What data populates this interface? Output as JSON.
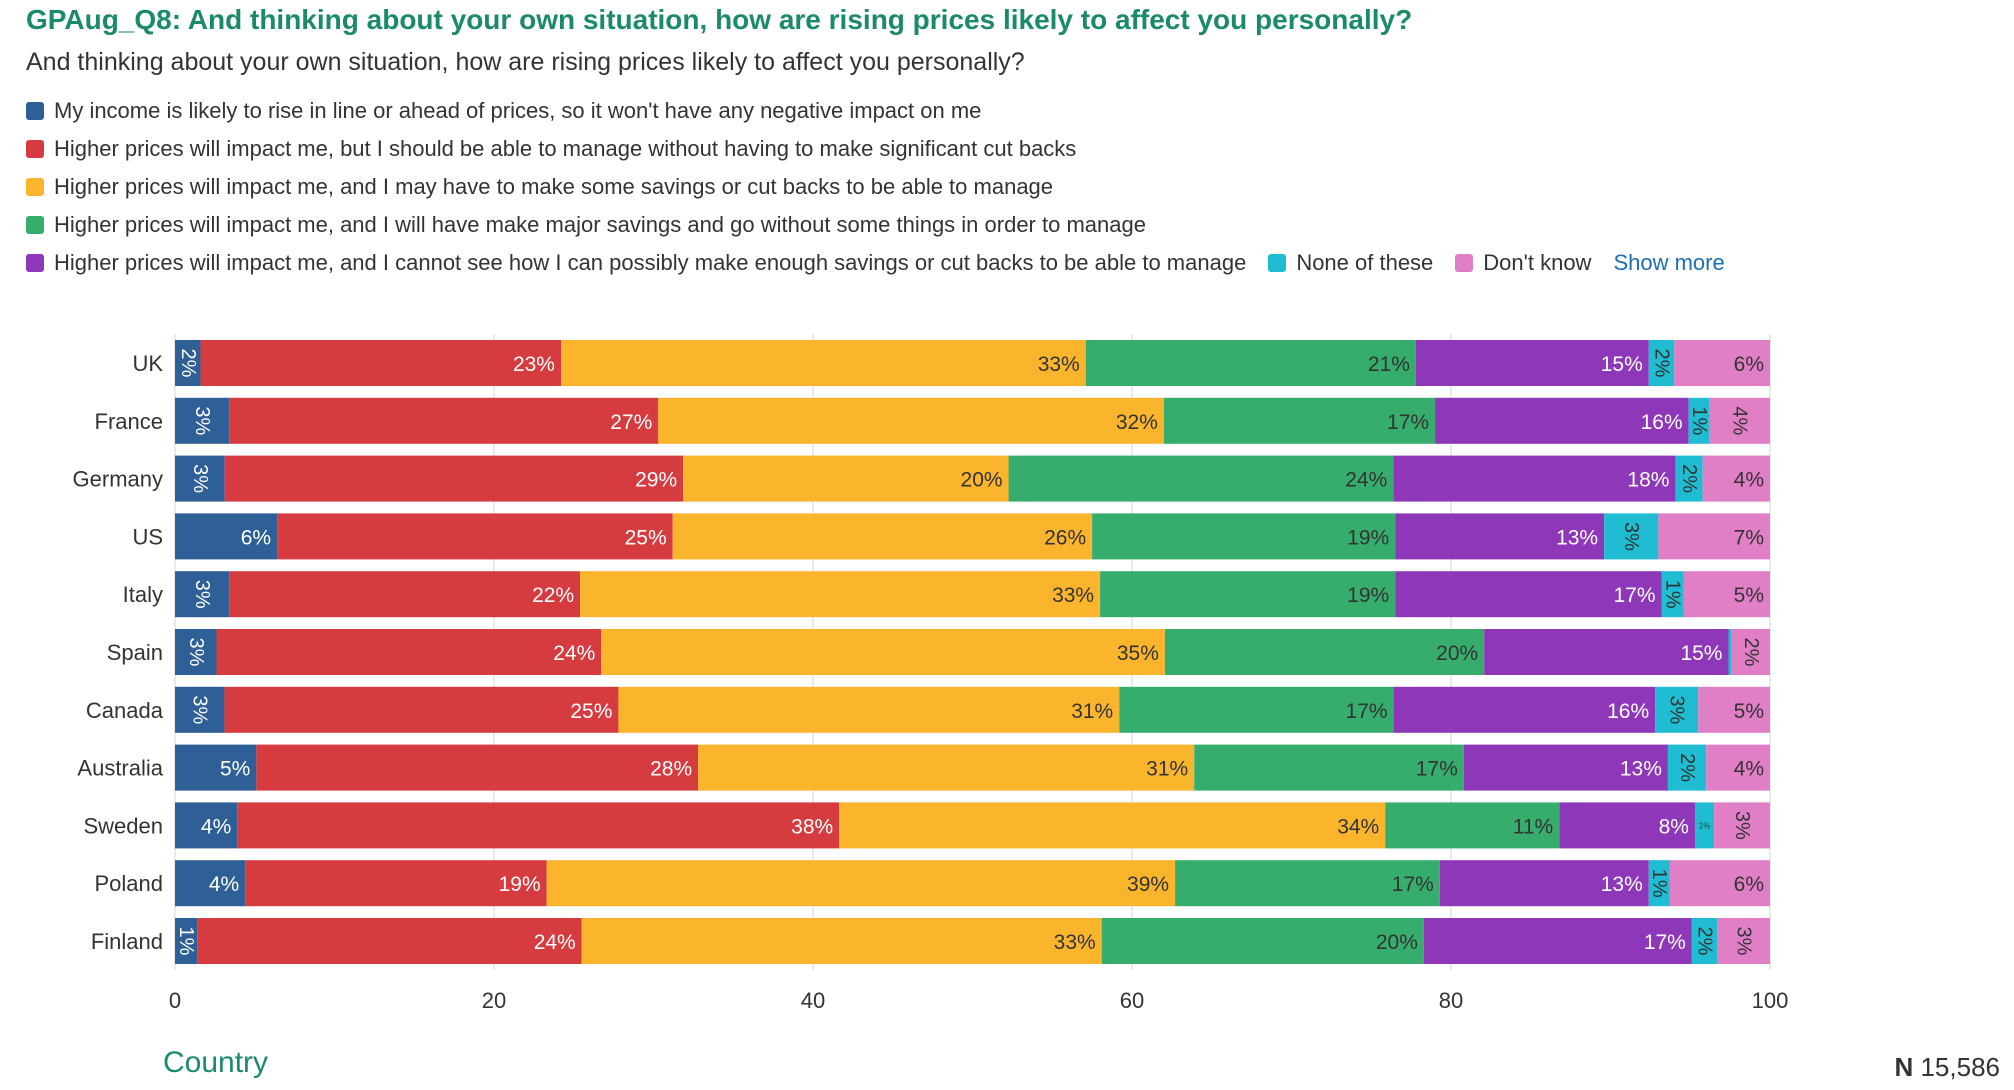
{
  "header": {
    "title": "GPAug_Q8: And thinking about your own situation, how are rising prices likely to affect you personally?",
    "subtitle": "And thinking about your own situation, how are rising prices likely to affect you personally?",
    "show_more": "Show more"
  },
  "footer": {
    "xaxis_title": "Country",
    "n_label": "N",
    "n_value": "15,586"
  },
  "colors": {
    "title": "#1b8a6b",
    "link": "#1a6fb5"
  },
  "chart_data": {
    "type": "bar",
    "orientation": "horizontal",
    "stacked": true,
    "title": "GPAug_Q8: And thinking about your own situation, how are rising prices likely to affect you personally?",
    "xlabel": "Country",
    "ylabel": "",
    "xlim": [
      0,
      100
    ],
    "xticks": [
      0,
      20,
      40,
      60,
      80,
      100
    ],
    "grid": true,
    "legend": "top",
    "categories": [
      "UK",
      "France",
      "Germany",
      "US",
      "Italy",
      "Spain",
      "Canada",
      "Australia",
      "Sweden",
      "Poland",
      "Finland"
    ],
    "series": [
      {
        "name": "My income is likely to rise in line or ahead of prices, so it won't have any negative impact on me",
        "color": "#2e5f96",
        "values": [
          1.6,
          3.4,
          3.1,
          6.4,
          3.4,
          2.6,
          3.1,
          5.1,
          3.9,
          4.4,
          1.4
        ]
      },
      {
        "name": "Higher prices will impact me, but I should be able to manage without having to make significant cut backs",
        "color": "#d63b3f",
        "values": [
          22.6,
          26.9,
          28.6,
          24.8,
          22.0,
          24.1,
          24.7,
          27.7,
          37.7,
          18.9,
          24.1
        ]
      },
      {
        "name": "Higher prices will impact me, and I may have to make some savings or cut backs to be able to manage",
        "color": "#fbb52d",
        "values": [
          32.9,
          31.7,
          20.3,
          26.3,
          32.6,
          35.3,
          31.4,
          31.1,
          34.2,
          39.4,
          32.6
        ]
      },
      {
        "name": "Higher prices will impact me, and I will have make major savings and go without some things in order to manage",
        "color": "#37ad6d",
        "values": [
          20.7,
          17.0,
          24.0,
          19.0,
          18.5,
          20.0,
          17.2,
          16.9,
          10.9,
          16.6,
          20.2
        ]
      },
      {
        "name": "Higher prices will impact me, and I cannot see how I can possibly make enough savings or cut backs to be able to manage",
        "color": "#8e37b8",
        "values": [
          14.6,
          15.9,
          17.6,
          13.1,
          16.7,
          15.3,
          16.4,
          12.8,
          8.5,
          13.1,
          16.8
        ]
      },
      {
        "name": "None of these",
        "color": "#1fbcd2",
        "values": [
          1.6,
          1.3,
          1.7,
          3.4,
          1.4,
          0.2,
          2.7,
          2.4,
          1.2,
          1.3,
          1.6
        ]
      },
      {
        "name": "Don't know",
        "color": "#e07fc6",
        "values": [
          6.0,
          3.8,
          4.2,
          7.0,
          5.4,
          2.4,
          4.5,
          4.0,
          3.5,
          6.3,
          3.3
        ]
      }
    ],
    "data_labels": [
      [
        "2%",
        "23%",
        "33%",
        "21%",
        "15%",
        "2%",
        "6%"
      ],
      [
        "3%",
        "27%",
        "32%",
        "17%",
        "16%",
        "1%",
        "4%"
      ],
      [
        "3%",
        "29%",
        "20%",
        "24%",
        "18%",
        "2%",
        "4%"
      ],
      [
        "6%",
        "25%",
        "26%",
        "19%",
        "13%",
        "3%",
        "7%"
      ],
      [
        "3%",
        "22%",
        "33%",
        "19%",
        "17%",
        "1%",
        "5%"
      ],
      [
        "3%",
        "24%",
        "35%",
        "20%",
        "15%",
        "",
        "2%"
      ],
      [
        "3%",
        "25%",
        "31%",
        "17%",
        "16%",
        "3%",
        "5%"
      ],
      [
        "5%",
        "28%",
        "31%",
        "17%",
        "13%",
        "2%",
        "4%"
      ],
      [
        "4%",
        "38%",
        "34%",
        "11%",
        "8%",
        "1%",
        "3%"
      ],
      [
        "4%",
        "19%",
        "39%",
        "17%",
        "13%",
        "1%",
        "6%"
      ],
      [
        "1%",
        "24%",
        "33%",
        "20%",
        "17%",
        "2%",
        "3%"
      ]
    ]
  }
}
